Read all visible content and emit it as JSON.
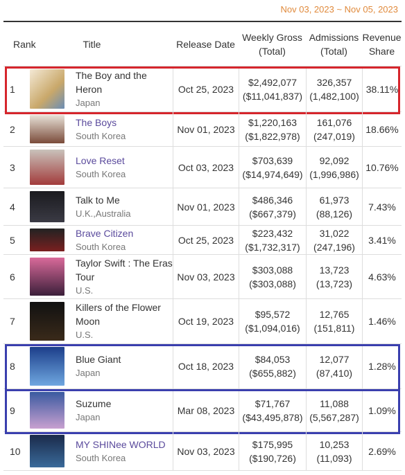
{
  "date_range": "Nov 03, 2023 ~ Nov 05, 2023",
  "columns": {
    "rank": "Rank",
    "title": "Title",
    "release_date": "Release Date",
    "gross": "Weekly Gross (Total)",
    "admissions": "Admissions (Total)",
    "share": "Revenue Share"
  },
  "rows": [
    {
      "rank": "1",
      "title": "The Boy and the Heron",
      "linked": false,
      "country": "Japan",
      "release_date": "Oct 25, 2023",
      "gross": "$2,492,077",
      "gross_total": "($11,041,837)",
      "admissions": "326,357",
      "admissions_total": "(1,482,100)",
      "share": "38.11%",
      "highlight": "red"
    },
    {
      "rank": "2",
      "title": "The Boys",
      "linked": true,
      "country": "South Korea",
      "release_date": "Nov 01, 2023",
      "gross": "$1,220,163",
      "gross_total": "($1,822,978)",
      "admissions": "161,076",
      "admissions_total": "(247,019)",
      "share": "18.66%"
    },
    {
      "rank": "3",
      "title": "Love Reset",
      "linked": true,
      "country": "South Korea",
      "release_date": "Oct 03, 2023",
      "gross": "$703,639",
      "gross_total": "($14,974,649)",
      "admissions": "92,092",
      "admissions_total": "(1,996,986)",
      "share": "10.76%"
    },
    {
      "rank": "4",
      "title": "Talk to Me",
      "linked": false,
      "country": "U.K.,Australia",
      "release_date": "Nov 01, 2023",
      "gross": "$486,346",
      "gross_total": "($667,379)",
      "admissions": "61,973",
      "admissions_total": "(88,126)",
      "share": "7.43%"
    },
    {
      "rank": "5",
      "title": "Brave Citizen",
      "linked": true,
      "country": "South Korea",
      "release_date": "Oct 25, 2023",
      "gross": "$223,432",
      "gross_total": "($1,732,317)",
      "admissions": "31,022",
      "admissions_total": "(247,196)",
      "share": "3.41%"
    },
    {
      "rank": "6",
      "title": "Taylor Swift : The Eras Tour",
      "linked": false,
      "country": "U.S.",
      "release_date": "Nov 03, 2023",
      "gross": "$303,088",
      "gross_total": "($303,088)",
      "admissions": "13,723",
      "admissions_total": "(13,723)",
      "share": "4.63%"
    },
    {
      "rank": "7",
      "title": "Killers of the Flower Moon",
      "linked": false,
      "country": "U.S.",
      "release_date": "Oct 19, 2023",
      "gross": "$95,572",
      "gross_total": "($1,094,016)",
      "admissions": "12,765",
      "admissions_total": "(151,811)",
      "share": "1.46%"
    },
    {
      "rank": "8",
      "title": "Blue Giant",
      "linked": false,
      "country": "Japan",
      "release_date": "Oct 18, 2023",
      "gross": "$84,053",
      "gross_total": "($655,882)",
      "admissions": "12,077",
      "admissions_total": "(87,410)",
      "share": "1.28%",
      "highlight": "blue"
    },
    {
      "rank": "9",
      "title": "Suzume",
      "linked": false,
      "country": "Japan",
      "release_date": "Mar 08, 2023",
      "gross": "$71,767",
      "gross_total": "($43,495,878)",
      "admissions": "11,088",
      "admissions_total": "(5,567,287)",
      "share": "1.09%",
      "highlight": "blue"
    },
    {
      "rank": "10",
      "title": "MY SHINee WORLD",
      "linked": true,
      "country": "South Korea",
      "release_date": "Nov 03, 2023",
      "gross": "$175,995",
      "gross_total": "($190,726)",
      "admissions": "10,253",
      "admissions_total": "(11,093)",
      "share": "2.69%"
    }
  ]
}
